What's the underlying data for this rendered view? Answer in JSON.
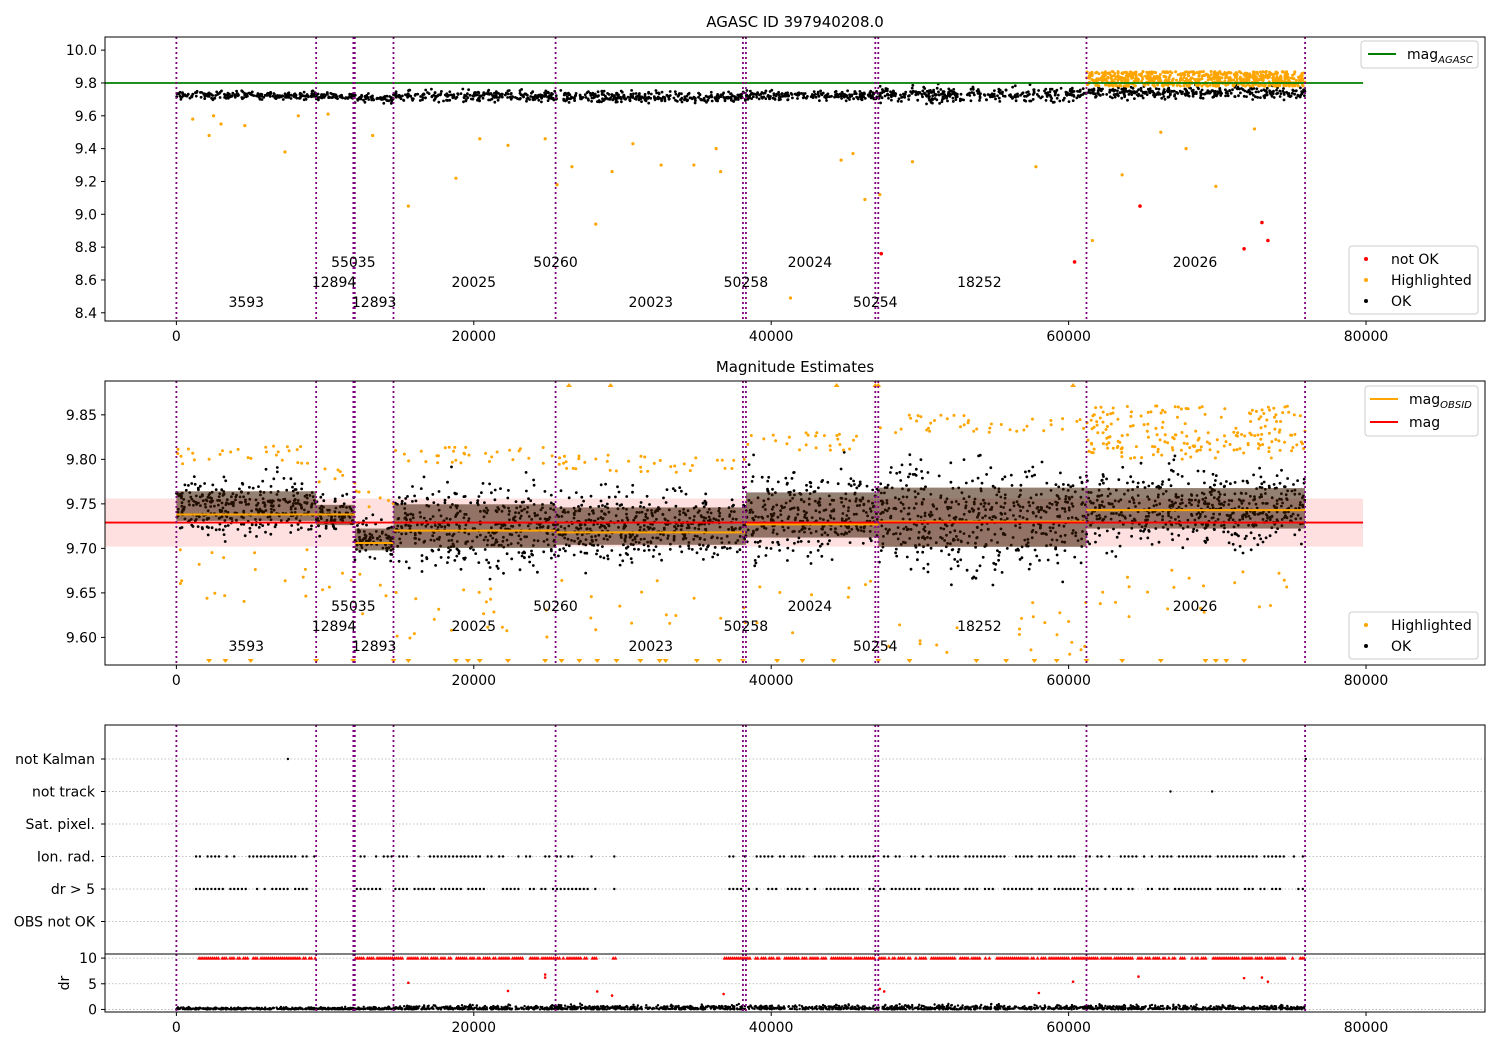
{
  "chart_data": [
    {
      "type": "scatter",
      "title": "AGASC ID 397940208.0",
      "xlabel": "",
      "ylabel": "",
      "xlim": [
        -4800,
        88000
      ],
      "ylim": [
        8.35,
        10.08
      ],
      "xticks": [
        0,
        20000,
        40000,
        60000,
        80000
      ],
      "xtick_labels": [
        "0",
        "20000",
        "40000",
        "60000",
        "80000"
      ],
      "yticks": [
        8.4,
        8.6,
        8.8,
        9.0,
        9.2,
        9.4,
        9.6,
        9.8,
        10.0
      ],
      "ytick_labels": [
        "8.4",
        "8.6",
        "8.8",
        "9.0",
        "9.2",
        "9.4",
        "9.6",
        "9.8",
        "10.0"
      ],
      "legend_lines": [
        {
          "label": "mag",
          "sub": "AGASC",
          "color": "#008000"
        }
      ],
      "legend_points": [
        {
          "label": "not OK",
          "color": "#ff0000"
        },
        {
          "label": "Highlighted",
          "color": "#ffa500"
        },
        {
          "label": "OK",
          "color": "#000000"
        }
      ],
      "mag_agasc": 9.8,
      "mag_agasc_x_range": [
        -4800,
        79800
      ],
      "obs_boundaries": [
        0,
        9400,
        11900,
        12000,
        14600,
        25500,
        38100,
        38300,
        47000,
        47200,
        61200,
        75900
      ],
      "obsids": [
        {
          "label": "3593",
          "x": 4700,
          "row": 0
        },
        {
          "label": "12894",
          "x": 10600,
          "row": 1
        },
        {
          "label": "55035",
          "x": 11900,
          "row": 2
        },
        {
          "label": "12893",
          "x": 13300,
          "row": 0
        },
        {
          "label": "20025",
          "x": 20000,
          "row": 1
        },
        {
          "label": "50260",
          "x": 25500,
          "row": 2
        },
        {
          "label": "20023",
          "x": 31900,
          "row": 0
        },
        {
          "label": "50258",
          "x": 38300,
          "row": 1
        },
        {
          "label": "20024",
          "x": 42600,
          "row": 2
        },
        {
          "label": "50254",
          "x": 47000,
          "row": 0
        },
        {
          "label": "18252",
          "x": 54000,
          "row": 1
        },
        {
          "label": "20026",
          "x": 68500,
          "row": 2
        }
      ],
      "segments": [
        {
          "x0": 0,
          "x1": 9400,
          "median": 9.725,
          "spread": 0.04
        },
        {
          "x0": 9400,
          "x1": 12000,
          "median": 9.72,
          "spread": 0.035
        },
        {
          "x0": 12000,
          "x1": 14600,
          "median": 9.705,
          "spread": 0.04
        },
        {
          "x0": 14600,
          "x1": 25500,
          "median": 9.72,
          "spread": 0.06
        },
        {
          "x0": 25500,
          "x1": 38300,
          "median": 9.715,
          "spread": 0.055
        },
        {
          "x0": 38300,
          "x1": 47200,
          "median": 9.725,
          "spread": 0.055
        },
        {
          "x0": 47200,
          "x1": 61200,
          "median": 9.73,
          "spread": 0.075
        },
        {
          "x0": 61200,
          "x1": 75900,
          "median": 9.74,
          "spread": 0.06
        }
      ],
      "highlighted_band": {
        "x0": 61200,
        "x1": 75900,
        "y0": 9.78,
        "y1": 9.87
      },
      "not_ok_points": [
        [
          64800,
          9.05
        ],
        [
          60400,
          8.71
        ],
        [
          71800,
          8.79
        ],
        [
          73000,
          8.95
        ],
        [
          73400,
          8.84
        ],
        [
          47400,
          8.76
        ]
      ],
      "highlighted_outliers": [
        [
          1100,
          9.58
        ],
        [
          2200,
          9.48
        ],
        [
          2500,
          9.6
        ],
        [
          3000,
          9.55
        ],
        [
          4600,
          9.54
        ],
        [
          7300,
          9.38
        ],
        [
          8200,
          9.6
        ],
        [
          10200,
          9.61
        ],
        [
          13200,
          9.48
        ],
        [
          15600,
          9.05
        ],
        [
          18800,
          9.22
        ],
        [
          20400,
          9.46
        ],
        [
          22300,
          9.42
        ],
        [
          24800,
          9.46
        ],
        [
          25600,
          9.18
        ],
        [
          26600,
          9.29
        ],
        [
          28200,
          8.94
        ],
        [
          29300,
          9.26
        ],
        [
          30700,
          9.43
        ],
        [
          32600,
          9.3
        ],
        [
          34800,
          9.3
        ],
        [
          36300,
          9.4
        ],
        [
          36600,
          9.26
        ],
        [
          41300,
          8.49
        ],
        [
          44700,
          9.33
        ],
        [
          45500,
          9.37
        ],
        [
          46300,
          9.09
        ],
        [
          47300,
          9.12
        ],
        [
          49500,
          9.32
        ],
        [
          57800,
          9.29
        ],
        [
          61600,
          8.84
        ],
        [
          63600,
          9.24
        ],
        [
          66200,
          9.5
        ],
        [
          67900,
          9.4
        ],
        [
          69900,
          9.17
        ],
        [
          72500,
          9.52
        ]
      ]
    },
    {
      "type": "scatter",
      "title": "Magnitude Estimates",
      "xlabel": "",
      "ylabel": "",
      "xlim": [
        -4800,
        88000
      ],
      "ylim": [
        9.569,
        9.888
      ],
      "xticks": [
        0,
        20000,
        40000,
        60000,
        80000
      ],
      "xtick_labels": [
        "0",
        "20000",
        "40000",
        "60000",
        "80000"
      ],
      "yticks": [
        9.6,
        9.65,
        9.7,
        9.75,
        9.8,
        9.85
      ],
      "ytick_labels": [
        "9.60",
        "9.65",
        "9.70",
        "9.75",
        "9.80",
        "9.85"
      ],
      "legend_lines": [
        {
          "label": "mag",
          "sub": "OBSID",
          "color": "#ffa500"
        },
        {
          "label": "mag",
          "sub": "",
          "color": "#ff0000"
        }
      ],
      "legend_points": [
        {
          "label": "Highlighted",
          "color": "#ffa500"
        },
        {
          "label": "OK",
          "color": "#000000"
        }
      ],
      "mag": 9.729,
      "mag_band": [
        9.702,
        9.756
      ],
      "mag_line_x_range": [
        -4800,
        79800
      ],
      "mag_obsid": [
        {
          "x0": 0,
          "x1": 12000,
          "mag": 9.738
        },
        {
          "x0": 12000,
          "x1": 14600,
          "mag": 9.706
        },
        {
          "x0": 14600,
          "x1": 25500,
          "mag": 9.72
        },
        {
          "x0": 25500,
          "x1": 38300,
          "mag": 9.718
        },
        {
          "x0": 38300,
          "x1": 47200,
          "mag": 9.727
        },
        {
          "x0": 47200,
          "x1": 61200,
          "mag": 9.73
        },
        {
          "x0": 61200,
          "x1": 75900,
          "mag": 9.743
        }
      ],
      "ok_bands": [
        {
          "x0": 0,
          "x1": 9400,
          "lo": 9.7,
          "hi": 9.795
        },
        {
          "x0": 9400,
          "x1": 12000,
          "lo": 9.705,
          "hi": 9.77
        },
        {
          "x0": 12000,
          "x1": 14600,
          "lo": 9.675,
          "hi": 9.745
        },
        {
          "x0": 14600,
          "x1": 25500,
          "lo": 9.655,
          "hi": 9.795
        },
        {
          "x0": 25500,
          "x1": 38300,
          "lo": 9.665,
          "hi": 9.785
        },
        {
          "x0": 38300,
          "x1": 47200,
          "lo": 9.665,
          "hi": 9.81
        },
        {
          "x0": 47200,
          "x1": 61200,
          "lo": 9.64,
          "hi": 9.83
        },
        {
          "x0": 61200,
          "x1": 75900,
          "lo": 9.68,
          "hi": 9.81
        }
      ],
      "clipped_low_x": [
        2200,
        3300,
        5000,
        9400,
        11900,
        14600,
        15600,
        18800,
        19600,
        20400,
        22300,
        24800,
        25900,
        27100,
        28300,
        29600,
        31200,
        32500,
        32900,
        35000,
        36500,
        38100,
        40400,
        42100,
        44200,
        47200,
        49300,
        53800,
        55800,
        57700,
        59200,
        61200,
        63600,
        66200,
        69200,
        69900,
        70600,
        71800
      ],
      "clipped_high_x": [
        26400,
        29200,
        44400,
        47000,
        47200,
        60300
      ],
      "obs_boundaries": [
        0,
        9400,
        11900,
        12000,
        14600,
        25500,
        38100,
        38300,
        47000,
        47200,
        61200,
        75900
      ],
      "obsids": [
        {
          "label": "3593",
          "x": 4700,
          "row": 0
        },
        {
          "label": "12894",
          "x": 10600,
          "row": 1
        },
        {
          "label": "55035",
          "x": 11900,
          "row": 2
        },
        {
          "label": "12893",
          "x": 13300,
          "row": 0
        },
        {
          "label": "20025",
          "x": 20000,
          "row": 1
        },
        {
          "label": "50260",
          "x": 25500,
          "row": 2
        },
        {
          "label": "20023",
          "x": 31900,
          "row": 0
        },
        {
          "label": "50258",
          "x": 38300,
          "row": 1
        },
        {
          "label": "20024",
          "x": 42600,
          "row": 2
        },
        {
          "label": "50254",
          "x": 47000,
          "row": 0
        },
        {
          "label": "18252",
          "x": 54000,
          "row": 1
        },
        {
          "label": "20026",
          "x": 68500,
          "row": 2
        }
      ]
    },
    {
      "type": "scatter",
      "title": "",
      "xlabel": "",
      "ylabel": "",
      "xlim": [
        -4800,
        88000
      ],
      "flag_rows": [
        "not Kalman",
        "not track",
        "Sat. pixel.",
        "Ion. rad.",
        "dr > 5",
        "OBS not OK"
      ],
      "flag_points": {
        "not Kalman": [
          [
            7400,
            7600
          ],
          [
            75900,
            76000
          ]
        ],
        "not track": [
          [
            66800,
            66900
          ],
          [
            69600,
            69700
          ]
        ],
        "Ion. rad.": [
          [
            1200,
            9400
          ],
          [
            12000,
            14600
          ],
          [
            14600,
            28300
          ],
          [
            29300,
            29600
          ],
          [
            36800,
            47000
          ],
          [
            47200,
            74600
          ],
          [
            75000,
            75900
          ]
        ],
        "dr > 5": [
          [
            1200,
            9400
          ],
          [
            12000,
            14600
          ],
          [
            14600,
            28300
          ],
          [
            29300,
            29600
          ],
          [
            36800,
            47000
          ],
          [
            47200,
            74600
          ],
          [
            75000,
            75900
          ]
        ]
      },
      "obs_boundaries": [
        0,
        9400,
        11900,
        12000,
        14600,
        25500,
        38100,
        38300,
        47000,
        47200,
        61200,
        75900
      ]
    },
    {
      "type": "scatter",
      "title": "",
      "xlabel": "",
      "ylabel": "dr",
      "xlim": [
        -4800,
        88000
      ],
      "ylim": [
        -0.5,
        10.8
      ],
      "xticks": [
        0,
        20000,
        40000,
        60000,
        80000
      ],
      "xtick_labels": [
        "0",
        "20000",
        "40000",
        "60000",
        "80000"
      ],
      "yticks": [
        0,
        5,
        10
      ],
      "ytick_labels": [
        "0",
        "5",
        "10"
      ],
      "clip_segments": [
        [
          1200,
          9400
        ],
        [
          12000,
          14600
        ],
        [
          14600,
          28300
        ],
        [
          29300,
          29600
        ],
        [
          36800,
          47000
        ],
        [
          47200,
          74600
        ],
        [
          75000,
          75900
        ]
      ],
      "dr_outliers": [
        [
          15600,
          5.2
        ],
        [
          24800,
          6.8
        ],
        [
          24800,
          6.2
        ],
        [
          47300,
          4.0
        ],
        [
          47600,
          3.5
        ],
        [
          58000,
          3.2
        ],
        [
          60300,
          5.4
        ],
        [
          64700,
          6.4
        ],
        [
          71800,
          6.1
        ],
        [
          73000,
          6.2
        ],
        [
          73400,
          5.4
        ],
        [
          36800,
          3.0
        ],
        [
          28300,
          3.5
        ],
        [
          29300,
          2.7
        ],
        [
          22300,
          3.6
        ]
      ],
      "obs_boundaries": [
        0,
        9400,
        11900,
        12000,
        14600,
        25500,
        38100,
        38300,
        47000,
        47200,
        61200,
        75900
      ]
    }
  ]
}
